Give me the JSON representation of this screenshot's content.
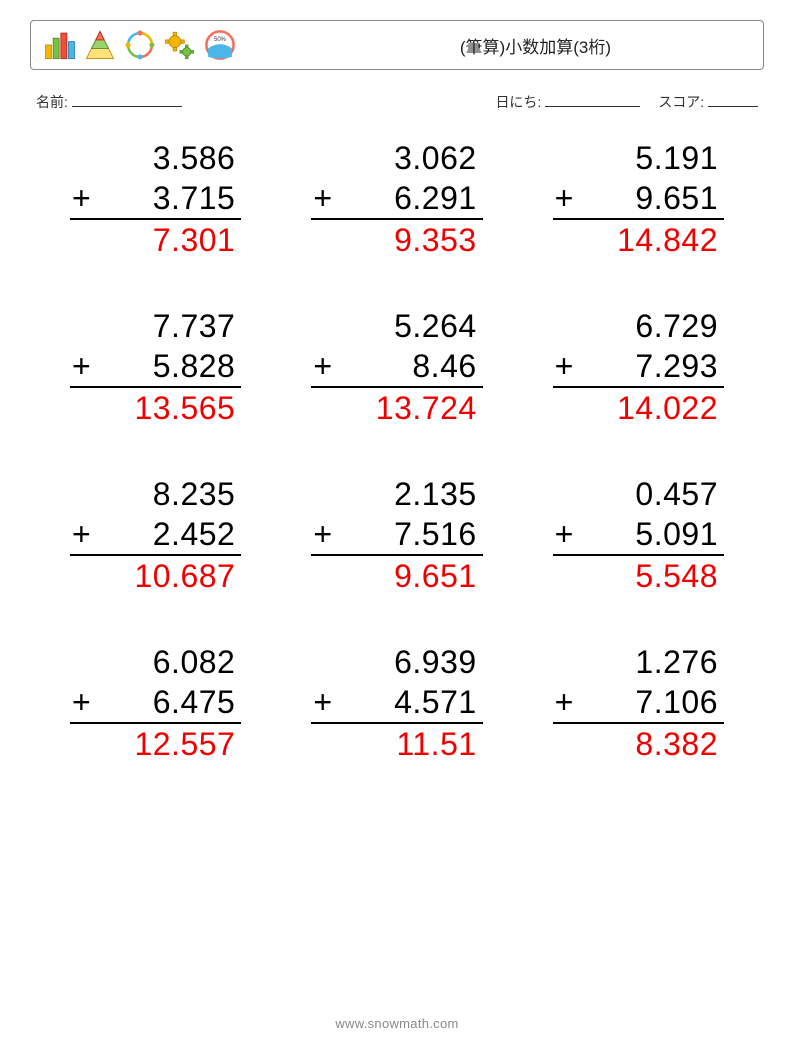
{
  "header": {
    "title": "(筆算)小数加算(3桁)",
    "icons": [
      "bar-chart",
      "pyramid",
      "cycle",
      "gears",
      "gauge"
    ]
  },
  "meta": {
    "name_label": "名前:",
    "date_label": "日にち:",
    "score_label": "スコア:"
  },
  "style": {
    "page_bg": "#ffffff",
    "text_color": "#000000",
    "answer_color": "#ee0000",
    "border_color": "#888888",
    "font_size_problem": 32,
    "font_size_meta": 14,
    "font_size_title": 17,
    "font_size_footer": 13,
    "columns": 3,
    "rows": 4,
    "column_gap": 70,
    "row_gap": 46,
    "rule_thickness": 2
  },
  "problems": [
    {
      "a": "3.586",
      "b": "3.715",
      "ans": "7.301"
    },
    {
      "a": "3.062",
      "b": "6.291",
      "ans": "9.353"
    },
    {
      "a": "5.191",
      "b": "9.651",
      "ans": "14.842"
    },
    {
      "a": "7.737",
      "b": "5.828",
      "ans": "13.565"
    },
    {
      "a": "5.264",
      "b": "8.46",
      "ans": "13.724"
    },
    {
      "a": "6.729",
      "b": "7.293",
      "ans": "14.022"
    },
    {
      "a": "8.235",
      "b": "2.452",
      "ans": "10.687"
    },
    {
      "a": "2.135",
      "b": "7.516",
      "ans": "9.651"
    },
    {
      "a": "0.457",
      "b": "5.091",
      "ans": "5.548"
    },
    {
      "a": "6.082",
      "b": "6.475",
      "ans": "12.557"
    },
    {
      "a": "6.939",
      "b": "4.571",
      "ans": "11.51"
    },
    {
      "a": "1.276",
      "b": "7.106",
      "ans": "8.382"
    }
  ],
  "operator": "+",
  "footer": "www.snowmath.com"
}
